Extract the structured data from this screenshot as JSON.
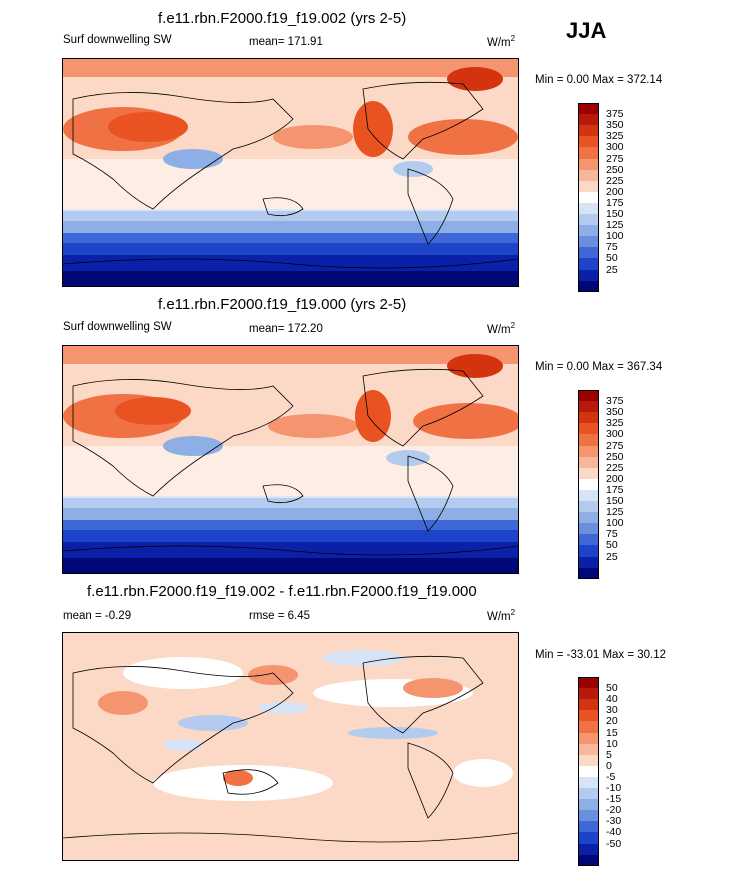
{
  "season": "JJA",
  "panels": [
    {
      "title": "f.e11.rbn.F2000.f19_f19.002 (yrs 2-5)",
      "left_label": "Surf downwelling SW",
      "center_label": "mean= 171.91",
      "units_base": "W/m",
      "units_sup": "2",
      "minmax": "Min =   0.00 Max = 372.14",
      "colorbar": {
        "labels": [
          "375",
          "350",
          "325",
          "300",
          "275",
          "250",
          "225",
          "200",
          "175",
          "150",
          "125",
          "100",
          "75",
          "50",
          "25"
        ],
        "colors": [
          "#9a0000",
          "#b71a0a",
          "#d3330f",
          "#e95322",
          "#f07244",
          "#f49570",
          "#f7b79b",
          "#fbd9c6",
          "#ffffff",
          "#d6e4f6",
          "#b3cbee",
          "#8eaee6",
          "#6a8fdd",
          "#3f68d6",
          "#1d43c9",
          "#0a20a8",
          "#000878"
        ]
      }
    },
    {
      "title": "f.e11.rbn.F2000.f19_f19.000 (yrs 2-5)",
      "left_label": "Surf downwelling SW",
      "center_label": "mean= 172.20",
      "units_base": "W/m",
      "units_sup": "2",
      "minmax": "Min =   0.00 Max = 367.34",
      "colorbar": {
        "labels": [
          "375",
          "350",
          "325",
          "300",
          "275",
          "250",
          "225",
          "200",
          "175",
          "150",
          "125",
          "100",
          "75",
          "50",
          "25"
        ],
        "colors": [
          "#9a0000",
          "#b71a0a",
          "#d3330f",
          "#e95322",
          "#f07244",
          "#f49570",
          "#f7b79b",
          "#fbd9c6",
          "#ffffff",
          "#d6e4f6",
          "#b3cbee",
          "#8eaee6",
          "#6a8fdd",
          "#3f68d6",
          "#1d43c9",
          "#0a20a8",
          "#000878"
        ]
      }
    },
    {
      "title": "f.e11.rbn.F2000.f19_f19.002 - f.e11.rbn.F2000.f19_f19.000",
      "left_label": "mean =  -0.29",
      "center_label": "rmse =   6.45",
      "units_base": "W/m",
      "units_sup": "2",
      "minmax": "Min = -33.01 Max =  30.12",
      "colorbar": {
        "labels": [
          "50",
          "40",
          "30",
          "20",
          "15",
          "10",
          "5",
          "0",
          "-5",
          "-10",
          "-15",
          "-20",
          "-30",
          "-40",
          "-50"
        ],
        "colors": [
          "#9a0000",
          "#b71a0a",
          "#d3330f",
          "#e95322",
          "#f07244",
          "#f49570",
          "#f7b79b",
          "#fbd9c6",
          "#ffffff",
          "#d6e4f6",
          "#b3cbee",
          "#8eaee6",
          "#6a8fdd",
          "#3f68d6",
          "#1d43c9",
          "#0a20a8",
          "#000878"
        ]
      }
    }
  ]
}
